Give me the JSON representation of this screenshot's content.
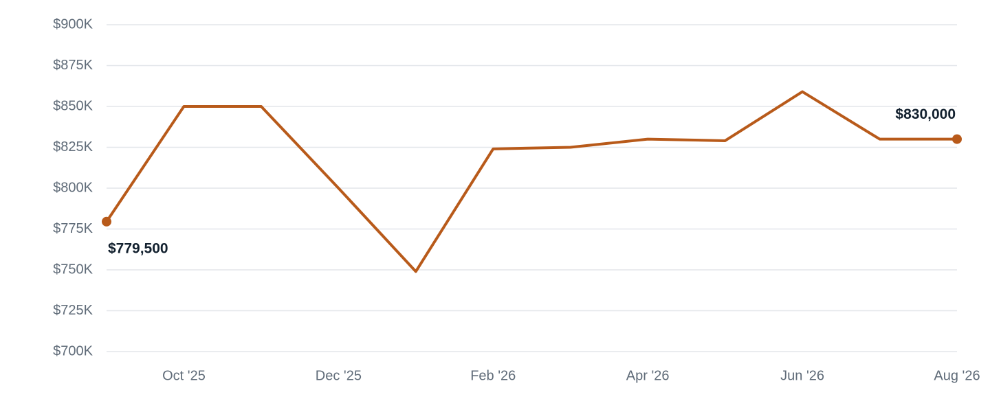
{
  "chart_data": {
    "type": "line",
    "categories": [
      null,
      "Oct '25",
      null,
      "Dec '25",
      null,
      "Feb '26",
      null,
      "Apr '26",
      null,
      "Jun '26",
      null,
      "Aug '26"
    ],
    "values": [
      779500,
      850000,
      850000,
      800000,
      749000,
      824000,
      825000,
      830000,
      829000,
      859000,
      830000,
      830000
    ],
    "value_labels": [
      "$779,500",
      null,
      null,
      null,
      null,
      null,
      null,
      null,
      null,
      null,
      null,
      "$830,000"
    ],
    "color": "#b85a1a",
    "ylim": [
      700000,
      900000
    ],
    "yticks": [
      {
        "value": 700000,
        "label": "$700K"
      },
      {
        "value": 725000,
        "label": "$725K"
      },
      {
        "value": 750000,
        "label": "$750K"
      },
      {
        "value": 775000,
        "label": "$775K"
      },
      {
        "value": 800000,
        "label": "$800K"
      },
      {
        "value": 825000,
        "label": "$825K"
      },
      {
        "value": 850000,
        "label": "$850K"
      },
      {
        "value": 875000,
        "label": "$875K"
      },
      {
        "value": 900000,
        "label": "$900K"
      }
    ],
    "grid": true
  }
}
